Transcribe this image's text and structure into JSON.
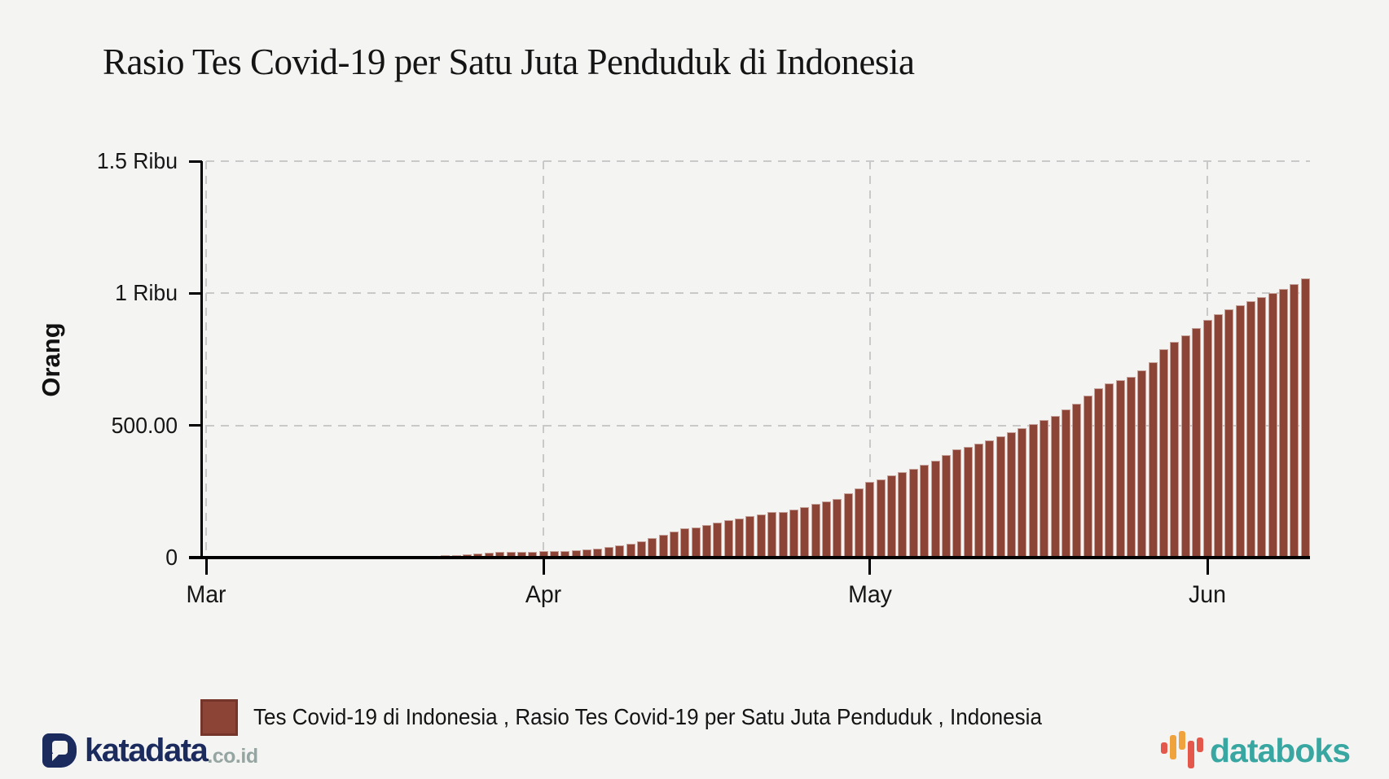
{
  "page": {
    "background": "#f4f4f3"
  },
  "header": {
    "title": "Rasio Tes Covid-19 per Satu Juta Penduduk di Indonesia"
  },
  "chart_data": {
    "type": "bar",
    "title": "Rasio Tes Covid-19 per Satu Juta Penduduk di Indonesia",
    "xlabel": "",
    "ylabel": "Orang",
    "ylim": [
      0,
      1500
    ],
    "grid": "dashed",
    "legend_position": "bottom",
    "bar_color": "#8c4437",
    "bar_border_color": "rgba(255,255,255,0.5)",
    "y_ticks": [
      {
        "label": "0",
        "value": 0
      },
      {
        "label": "500.00",
        "value": 500
      },
      {
        "label": "1 Ribu",
        "value": 1000
      },
      {
        "label": "1.5 Ribu",
        "value": 1500
      }
    ],
    "x_ticks": [
      {
        "label": "Mar",
        "day_offset": 0
      },
      {
        "label": "Apr",
        "day_offset": 31
      },
      {
        "label": "May",
        "day_offset": 61
      },
      {
        "label": "Jun",
        "day_offset": 92
      }
    ],
    "first_bar_day_offset": 13,
    "series": [
      {
        "name": "Tes Covid-19 di Indonesia , Rasio Tes Covid-19 per Satu Juta Penduduk , Indonesia",
        "x": [
          "Mar 14",
          "Mar 15",
          "Mar 16",
          "Mar 17",
          "Mar 18",
          "Mar 19",
          "Mar 20",
          "Mar 21",
          "Mar 22",
          "Mar 23",
          "Mar 24",
          "Mar 25",
          "Mar 26",
          "Mar 27",
          "Mar 28",
          "Mar 29",
          "Mar 30",
          "Mar 31",
          "Apr 1",
          "Apr 2",
          "Apr 3",
          "Apr 4",
          "Apr 5",
          "Apr 6",
          "Apr 7",
          "Apr 8",
          "Apr 9",
          "Apr 10",
          "Apr 11",
          "Apr 12",
          "Apr 13",
          "Apr 14",
          "Apr 15",
          "Apr 16",
          "Apr 17",
          "Apr 18",
          "Apr 19",
          "Apr 20",
          "Apr 21",
          "Apr 22",
          "Apr 23",
          "Apr 24",
          "Apr 25",
          "Apr 26",
          "Apr 27",
          "Apr 28",
          "Apr 29",
          "Apr 30",
          "May 1",
          "May 2",
          "May 3",
          "May 4",
          "May 5",
          "May 6",
          "May 7",
          "May 8",
          "May 9",
          "May 10",
          "May 11",
          "May 12",
          "May 13",
          "May 14",
          "May 15",
          "May 16",
          "May 17",
          "May 18",
          "May 19",
          "May 20",
          "May 21",
          "May 22",
          "May 23",
          "May 24",
          "May 25",
          "May 26",
          "May 27",
          "May 28",
          "May 29",
          "May 30",
          "May 31",
          "Jun 1",
          "Jun 2",
          "Jun 3",
          "Jun 4",
          "Jun 5",
          "Jun 6",
          "Jun 7",
          "Jun 8",
          "Jun 9",
          "Jun 10"
        ],
        "values": [
          2,
          2,
          3,
          3,
          4,
          4,
          5,
          6,
          7,
          8,
          9,
          13,
          16,
          19,
          21,
          21,
          22,
          22,
          24,
          25,
          26,
          28,
          31,
          35,
          39,
          45,
          53,
          61,
          73,
          86,
          99,
          110,
          113,
          123,
          131,
          141,
          148,
          156,
          164,
          171,
          174,
          182,
          191,
          204,
          214,
          222,
          243,
          263,
          286,
          296,
          310,
          322,
          336,
          350,
          368,
          388,
          411,
          419,
          430,
          443,
          459,
          474,
          489,
          505,
          521,
          537,
          560,
          583,
          612,
          640,
          659,
          671,
          685,
          709,
          739,
          790,
          816,
          842,
          870,
          900,
          921,
          940,
          956,
          971,
          986,
          1002,
          1016,
          1036,
          1055
        ]
      }
    ]
  },
  "legend": {
    "label": "Tes Covid-19 di Indonesia , Rasio Tes Covid-19 per Satu Juta Penduduk , Indonesia",
    "swatch_fill": "#8c4437",
    "swatch_border": "#76352a"
  },
  "footer": {
    "katadata": {
      "brand": "katadata",
      "suffix": ".co.id",
      "brand_color": "#1c2b5e",
      "suffix_color": "#95a5a1"
    },
    "databoks": {
      "brand": "databoks",
      "brand_color": "#38a7a1",
      "icon_orange": "#f0a23c",
      "icon_red": "#e4574b"
    }
  }
}
